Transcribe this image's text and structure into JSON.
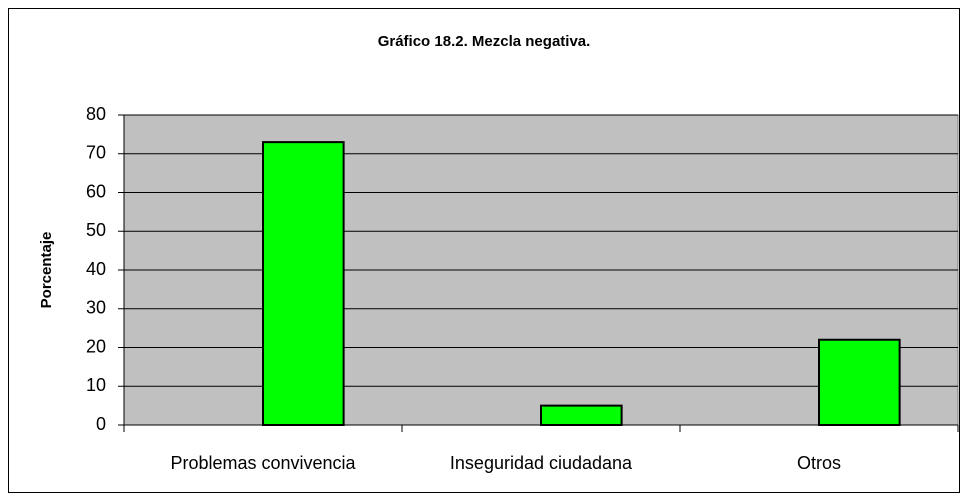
{
  "chart_data": {
    "type": "bar",
    "title": "Gráfico 18.2. Mezcla negativa.",
    "y_label": "Porcentaje",
    "categories": [
      "Problemas convivencia",
      "Inseguridad ciudadana",
      "Otros"
    ],
    "values": [
      73,
      5,
      22
    ],
    "color": "#00ff00",
    "ylim": [
      0,
      80
    ],
    "yticks": [
      0,
      10,
      20,
      30,
      40,
      50,
      60,
      70,
      80
    ],
    "grid": true
  }
}
